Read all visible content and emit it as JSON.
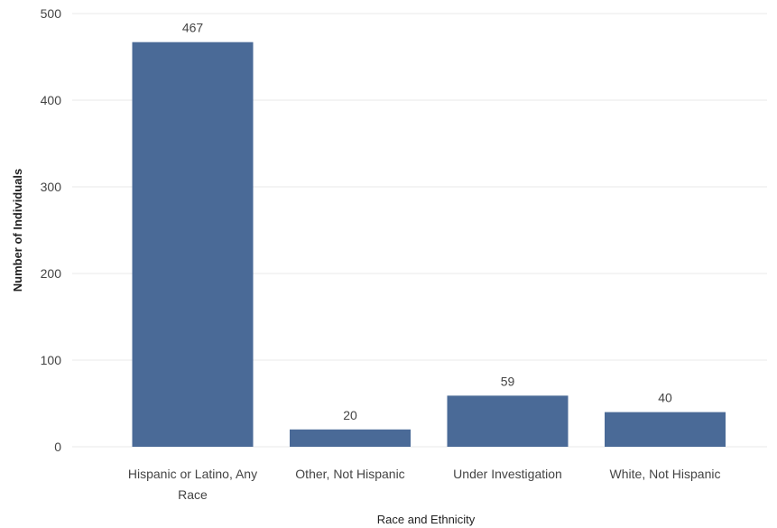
{
  "chart_data": {
    "type": "bar",
    "categories": [
      "Hispanic or Latino, Any Race",
      "Other, Not Hispanic",
      "Under Investigation",
      "White, Not Hispanic"
    ],
    "category_lines": [
      [
        "Hispanic or Latino, Any",
        "Race"
      ],
      [
        "Other, Not Hispanic"
      ],
      [
        "Under Investigation"
      ],
      [
        "White, Not Hispanic"
      ]
    ],
    "values": [
      467,
      20,
      59,
      40
    ],
    "data_labels": [
      "467",
      "20",
      "59",
      "40"
    ],
    "title": "",
    "xlabel": "Race and Ethnicity",
    "ylabel": "Number of Individuals",
    "ylim": [
      0,
      500
    ],
    "yticks": [
      0,
      100,
      200,
      300,
      400,
      500
    ],
    "bar_color": "#4a6a97",
    "grid": true,
    "legend": "none"
  }
}
